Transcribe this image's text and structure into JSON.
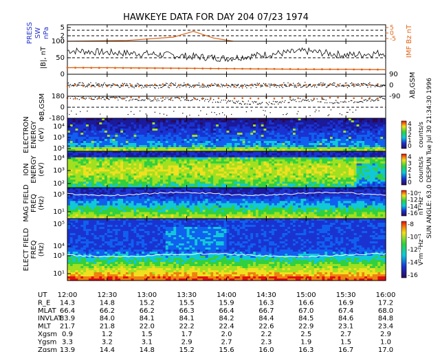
{
  "title": "HAWKEYE DATA FOR DAY 204 07/23 1974",
  "side_text": "SUN ANGLE: 63.0 DESPUN Tue Jul 30 21:34:30 1996",
  "colors": {
    "black_trace": "#000000",
    "orange_trace": "#e06010",
    "blue_label": "#2233cc",
    "dark_background": "#2a0a5a"
  },
  "chart_data": [
    {
      "type": "line",
      "panel": "press-sw",
      "ylabel_left": [
        "PRESS",
        "SW",
        "nPa"
      ],
      "ylabel_right": [
        "IMF Bz nT"
      ],
      "yticks": [
        "5",
        "2",
        "0"
      ],
      "right_ticks": [
        "5",
        "0",
        "-5"
      ],
      "ylim": [
        0,
        6
      ],
      "x": [
        "12:00",
        "12:45",
        "13:20",
        "13:35",
        "13:50",
        "14:05"
      ],
      "series": [
        {
          "name": "",
          "values": [
            0,
            0.3,
            1.5,
            3.6,
            1.2,
            0
          ]
        }
      ]
    },
    {
      "type": "line",
      "panel": "b-magnitude",
      "ylabel_left": [
        "|B|, nT"
      ],
      "yticks": [
        "100",
        "50",
        "0"
      ],
      "ylim": [
        0,
        100
      ],
      "x": [
        "12:00",
        "12:30",
        "13:00",
        "13:30",
        "14:00",
        "14:30",
        "15:00",
        "15:30",
        "16:00"
      ],
      "series": [
        {
          "name": "",
          "values": [
            72,
            66,
            62,
            55,
            48,
            60,
            70,
            58,
            65
          ]
        },
        {
          "name": "",
          "values": [
            20,
            20,
            19,
            18,
            17,
            16,
            15,
            15,
            14
          ]
        }
      ]
    },
    {
      "type": "scatter",
      "panel": "lambda-bgsm",
      "ylabel_right": [
        "λB,GSM"
      ],
      "yticks": [
        "90",
        "0",
        "-90"
      ],
      "ylim": [
        -90,
        90
      ],
      "x": [
        "12:00",
        "12:30",
        "13:00",
        "13:30",
        "14:00",
        "14:30",
        "15:00",
        "15:30",
        "16:00"
      ],
      "series": [
        {
          "name": "",
          "values": [
            5,
            0,
            -5,
            2,
            -3,
            -2,
            4,
            0,
            3
          ]
        }
      ]
    },
    {
      "type": "scatter",
      "panel": "phi-bgsm",
      "ylabel_left": [
        "ΦB,GSM"
      ],
      "yticks": [
        "180",
        "0",
        "-180"
      ],
      "ylim": [
        -180,
        180
      ],
      "x": [
        "12:00",
        "12:30",
        "13:00",
        "13:30",
        "14:00",
        "14:30",
        "15:00",
        "15:30",
        "16:00"
      ],
      "series": [
        {
          "name": "",
          "values": [
            160,
            150,
            120,
            140,
            90,
            60,
            130,
            70,
            150
          ]
        }
      ]
    },
    {
      "type": "heatmap",
      "panel": "electron",
      "ylabel_left": [
        "ELECTRON",
        "ENERGY",
        "(eV)"
      ],
      "yticks": [
        "10⁴",
        "10³",
        "10²"
      ],
      "colorbar_ticks": [
        "4",
        "3",
        "2",
        "1",
        "0"
      ],
      "colorbar_label": "counts/s"
    },
    {
      "type": "heatmap",
      "panel": "ion",
      "ylabel_left": [
        "ION",
        "ENERGY",
        "(eV)"
      ],
      "yticks": [
        "10⁴",
        "10³",
        "10²"
      ],
      "colorbar_ticks": [
        "4",
        "3",
        "2",
        "1",
        "0"
      ],
      "colorbar_label": "counts/s"
    },
    {
      "type": "heatmap",
      "panel": "mag-field",
      "ylabel_left": [
        "MAG FIELD",
        "FREQ",
        "(Hz)"
      ],
      "yticks": [
        "10³",
        "10¹"
      ],
      "colorbar_ticks": [
        "-10",
        "-12",
        "-14",
        "-16"
      ],
      "colorbar_label": "nT²Hz⁻¹"
    },
    {
      "type": "heatmap",
      "panel": "elect-field",
      "ylabel_left": [
        "ELECT FIELD",
        "FREQ",
        "(Hz)"
      ],
      "yticks": [
        "10⁵",
        "10⁴",
        "10³",
        "10¹"
      ],
      "colorbar_ticks": [
        "-8",
        "-10",
        "-12",
        "-14",
        "-16"
      ],
      "colorbar_label": "V²m⁻²Hz⁻¹"
    }
  ],
  "ephemeris": {
    "labels": [
      "UT",
      "R_E",
      "MLAT",
      "INVLAT",
      "MLT",
      "Xgsm",
      "Ygsm",
      "Zgsm"
    ],
    "times": [
      "12:00",
      "12:30",
      "13:00",
      "13:30",
      "14:00",
      "14:30",
      "15:00",
      "15:30",
      "16:00"
    ],
    "rows": [
      [
        "14.3",
        "14.8",
        "15.2",
        "15.5",
        "15.9",
        "16.3",
        "16.6",
        "16.9",
        "17.2"
      ],
      [
        "66.4",
        "66.2",
        "66.2",
        "66.3",
        "66.4",
        "66.7",
        "67.0",
        "67.4",
        "68.0"
      ],
      [
        "83.9",
        "84.0",
        "84.1",
        "84.1",
        "84.2",
        "84.4",
        "84.5",
        "84.6",
        "84.8"
      ],
      [
        "21.7",
        "21.8",
        "22.0",
        "22.2",
        "22.4",
        "22.6",
        "22.9",
        "23.1",
        "23.4"
      ],
      [
        "0.9",
        "1.2",
        "1.5",
        "1.7",
        "2.0",
        "2.2",
        "2.5",
        "2.7",
        "2.9"
      ],
      [
        "3.3",
        "3.2",
        "3.1",
        "2.9",
        "2.7",
        "2.3",
        "1.9",
        "1.5",
        "1.0"
      ],
      [
        "13.9",
        "14.4",
        "14.8",
        "15.2",
        "15.6",
        "16.0",
        "16.3",
        "16.7",
        "17.0"
      ]
    ]
  }
}
